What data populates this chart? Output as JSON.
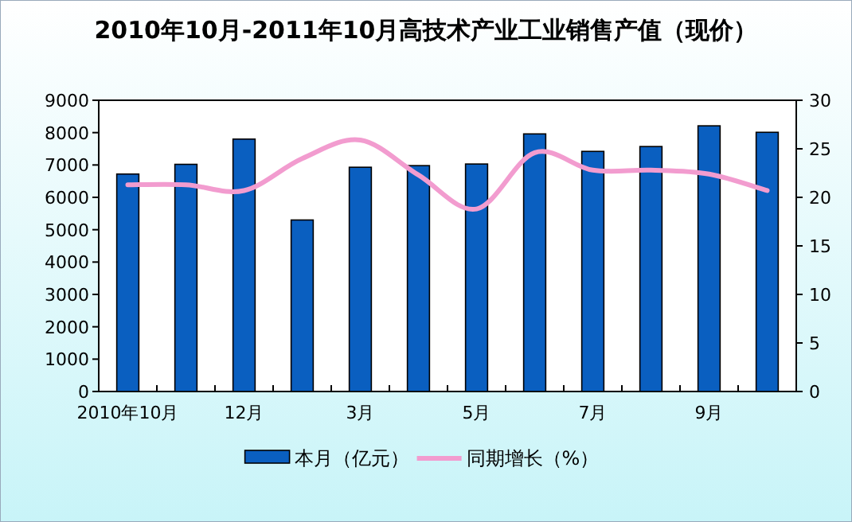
{
  "chart_data": {
    "type": "bar",
    "title": "2010年10月-2011年10月高技术产业工业销售产值（现价）",
    "categories": [
      "2010年10月",
      null,
      "12月",
      null,
      "3月",
      null,
      "5月",
      null,
      "7月",
      null,
      "9月",
      null
    ],
    "series": [
      {
        "name": "本月（亿元）",
        "color": "#0a5fc0",
        "values": [
          6720,
          7020,
          7800,
          5300,
          6930,
          6980,
          7030,
          7960,
          7420,
          7570,
          8210,
          8010
        ]
      },
      {
        "name": "同期增长（%）",
        "type": "line",
        "axis": "y2",
        "color": "#f29ccf",
        "values": [
          21.3,
          21.3,
          20.7,
          24.0,
          25.9,
          22.3,
          18.8,
          24.6,
          22.8,
          22.8,
          22.4,
          20.7
        ]
      }
    ],
    "ylim": [
      0,
      9000
    ],
    "yticks": [
      0,
      1000,
      2000,
      3000,
      4000,
      5000,
      6000,
      7000,
      8000,
      9000
    ],
    "y2lim": [
      0,
      30
    ],
    "y2ticks": [
      0,
      5,
      10,
      15,
      20,
      25,
      30
    ],
    "grid": false,
    "legend": "bottom"
  }
}
